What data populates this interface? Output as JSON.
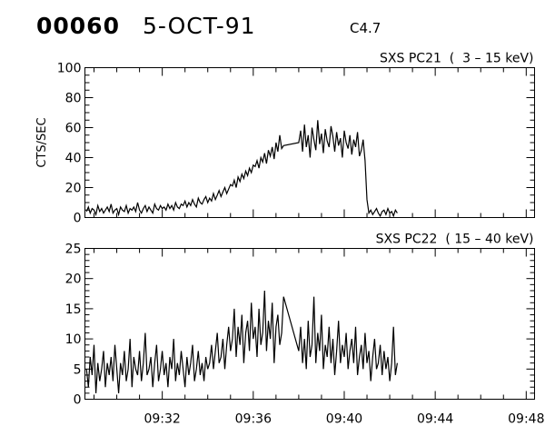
{
  "header": {
    "observation": "00060",
    "date": "5-OCT-91",
    "flare_class": "C4.7"
  },
  "chart_data": {
    "type": "line",
    "x_tick_labels": [
      "09:32",
      "09:36",
      "09:40",
      "09:44",
      "09:48"
    ],
    "xlim": [
      "09:28:36",
      "09:48:22"
    ],
    "x": [
      "09:28:40",
      "09:28:45",
      "09:28:50",
      "09:28:55",
      "09:29:00",
      "09:29:05",
      "09:29:10",
      "09:29:15",
      "09:29:20",
      "09:29:25",
      "09:29:30",
      "09:29:35",
      "09:29:40",
      "09:29:45",
      "09:29:50",
      "09:29:55",
      "09:30:00",
      "09:30:05",
      "09:30:10",
      "09:30:15",
      "09:30:20",
      "09:30:25",
      "09:30:30",
      "09:30:35",
      "09:30:40",
      "09:30:45",
      "09:30:50",
      "09:30:55",
      "09:31:00",
      "09:31:05",
      "09:31:10",
      "09:31:15",
      "09:31:20",
      "09:31:25",
      "09:31:30",
      "09:31:35",
      "09:31:40",
      "09:31:45",
      "09:31:50",
      "09:31:55",
      "09:32:00",
      "09:32:05",
      "09:32:10",
      "09:32:15",
      "09:32:20",
      "09:32:25",
      "09:32:30",
      "09:32:35",
      "09:32:40",
      "09:32:45",
      "09:32:50",
      "09:32:55",
      "09:33:00",
      "09:33:05",
      "09:33:10",
      "09:33:15",
      "09:33:20",
      "09:33:25",
      "09:33:30",
      "09:33:35",
      "09:33:40",
      "09:33:45",
      "09:33:50",
      "09:33:55",
      "09:34:00",
      "09:34:05",
      "09:34:10",
      "09:34:15",
      "09:34:20",
      "09:34:25",
      "09:34:30",
      "09:34:35",
      "09:34:40",
      "09:34:45",
      "09:34:50",
      "09:34:55",
      "09:35:00",
      "09:35:05",
      "09:35:10",
      "09:35:15",
      "09:35:20",
      "09:35:25",
      "09:35:30",
      "09:35:35",
      "09:35:40",
      "09:35:45",
      "09:35:50",
      "09:35:55",
      "09:36:00",
      "09:36:05",
      "09:36:10",
      "09:36:15",
      "09:36:20",
      "09:36:25",
      "09:36:30",
      "09:36:35",
      "09:36:40",
      "09:36:45",
      "09:36:50",
      "09:36:55",
      "09:37:00",
      "09:37:05",
      "09:37:10",
      "09:37:15",
      "09:37:20",
      "09:38:00",
      "09:38:05",
      "09:38:10",
      "09:38:15",
      "09:38:20",
      "09:38:25",
      "09:38:30",
      "09:38:35",
      "09:38:40",
      "09:38:45",
      "09:38:50",
      "09:38:55",
      "09:39:00",
      "09:39:05",
      "09:39:10",
      "09:39:15",
      "09:39:20",
      "09:39:25",
      "09:39:30",
      "09:39:35",
      "09:39:40",
      "09:39:45",
      "09:39:50",
      "09:39:55",
      "09:40:00",
      "09:40:05",
      "09:40:10",
      "09:40:15",
      "09:40:20",
      "09:40:25",
      "09:40:30",
      "09:40:35",
      "09:40:40",
      "09:40:45",
      "09:40:50",
      "09:40:55",
      "09:41:00",
      "09:41:05",
      "09:41:10",
      "09:41:15",
      "09:41:20",
      "09:41:25",
      "09:41:30",
      "09:41:35",
      "09:41:40",
      "09:41:45",
      "09:41:50",
      "09:41:55",
      "09:42:00",
      "09:42:05",
      "09:42:10",
      "09:42:15",
      "09:42:20"
    ],
    "panels": [
      {
        "title": "SXS PC21  (  3 – 15 keV)",
        "ylabel": "CTS/SEC",
        "ylim": [
          0,
          100
        ],
        "y_ticks": [
          0,
          20,
          40,
          60,
          80,
          100
        ],
        "y_minor_step": 5,
        "y": [
          4,
          7,
          3,
          6,
          5,
          2,
          8,
          4,
          6,
          3,
          5,
          7,
          4,
          9,
          3,
          5,
          6,
          2,
          7,
          5,
          4,
          8,
          3,
          6,
          5,
          7,
          4,
          10,
          5,
          3,
          6,
          8,
          4,
          7,
          5,
          3,
          9,
          6,
          5,
          8,
          6,
          7,
          5,
          9,
          6,
          8,
          5,
          10,
          7,
          6,
          9,
          8,
          11,
          7,
          10,
          8,
          12,
          9,
          7,
          13,
          10,
          9,
          12,
          14,
          10,
          13,
          11,
          16,
          12,
          15,
          18,
          14,
          17,
          20,
          16,
          19,
          22,
          21,
          25,
          20,
          27,
          24,
          29,
          26,
          31,
          28,
          33,
          30,
          35,
          34,
          38,
          33,
          40,
          37,
          43,
          36,
          45,
          41,
          47,
          39,
          50,
          44,
          55,
          46,
          48,
          50,
          58,
          44,
          62,
          47,
          55,
          40,
          60,
          52,
          45,
          65,
          49,
          56,
          43,
          59,
          51,
          47,
          61,
          54,
          44,
          57,
          48,
          53,
          40,
          58,
          50,
          46,
          55,
          42,
          52,
          47,
          57,
          41,
          45,
          52,
          38,
          12,
          3,
          5,
          2,
          4,
          6,
          3,
          1,
          4,
          5,
          2,
          6,
          3,
          4,
          1,
          5,
          3
        ]
      },
      {
        "title": "SXS PC22  ( 15 – 40 keV)",
        "ylabel": "",
        "ylim": [
          0,
          25
        ],
        "y_ticks": [
          0,
          5,
          10,
          15,
          20,
          25
        ],
        "y_minor_step": 1,
        "y": [
          5,
          2,
          7,
          4,
          9,
          1,
          6,
          3,
          5,
          8,
          2,
          6,
          4,
          7,
          3,
          9,
          5,
          1,
          6,
          4,
          8,
          3,
          5,
          10,
          2,
          7,
          5,
          4,
          8,
          3,
          6,
          11,
          4,
          5,
          7,
          2,
          6,
          9,
          3,
          5,
          8,
          4,
          6,
          2,
          7,
          5,
          10,
          3,
          6,
          4,
          8,
          5,
          2,
          7,
          4,
          6,
          9,
          3,
          5,
          8,
          4,
          6,
          3,
          7,
          5,
          6,
          9,
          5,
          8,
          11,
          6,
          7,
          10,
          5,
          9,
          12,
          8,
          10,
          15,
          7,
          12,
          9,
          14,
          6,
          11,
          13,
          8,
          16,
          10,
          12,
          7,
          15,
          9,
          11,
          18,
          8,
          13,
          10,
          16,
          6,
          12,
          14,
          9,
          11,
          17,
          8,
          12,
          6,
          10,
          5,
          13,
          7,
          9,
          17,
          6,
          11,
          8,
          14,
          5,
          9,
          7,
          12,
          6,
          10,
          4,
          8,
          13,
          6,
          9,
          7,
          11,
          5,
          8,
          10,
          6,
          12,
          4,
          7,
          9,
          5,
          11,
          6,
          8,
          3,
          7,
          10,
          5,
          6,
          9,
          4,
          8,
          5,
          7,
          3,
          6,
          12,
          4,
          6
        ]
      }
    ]
  }
}
